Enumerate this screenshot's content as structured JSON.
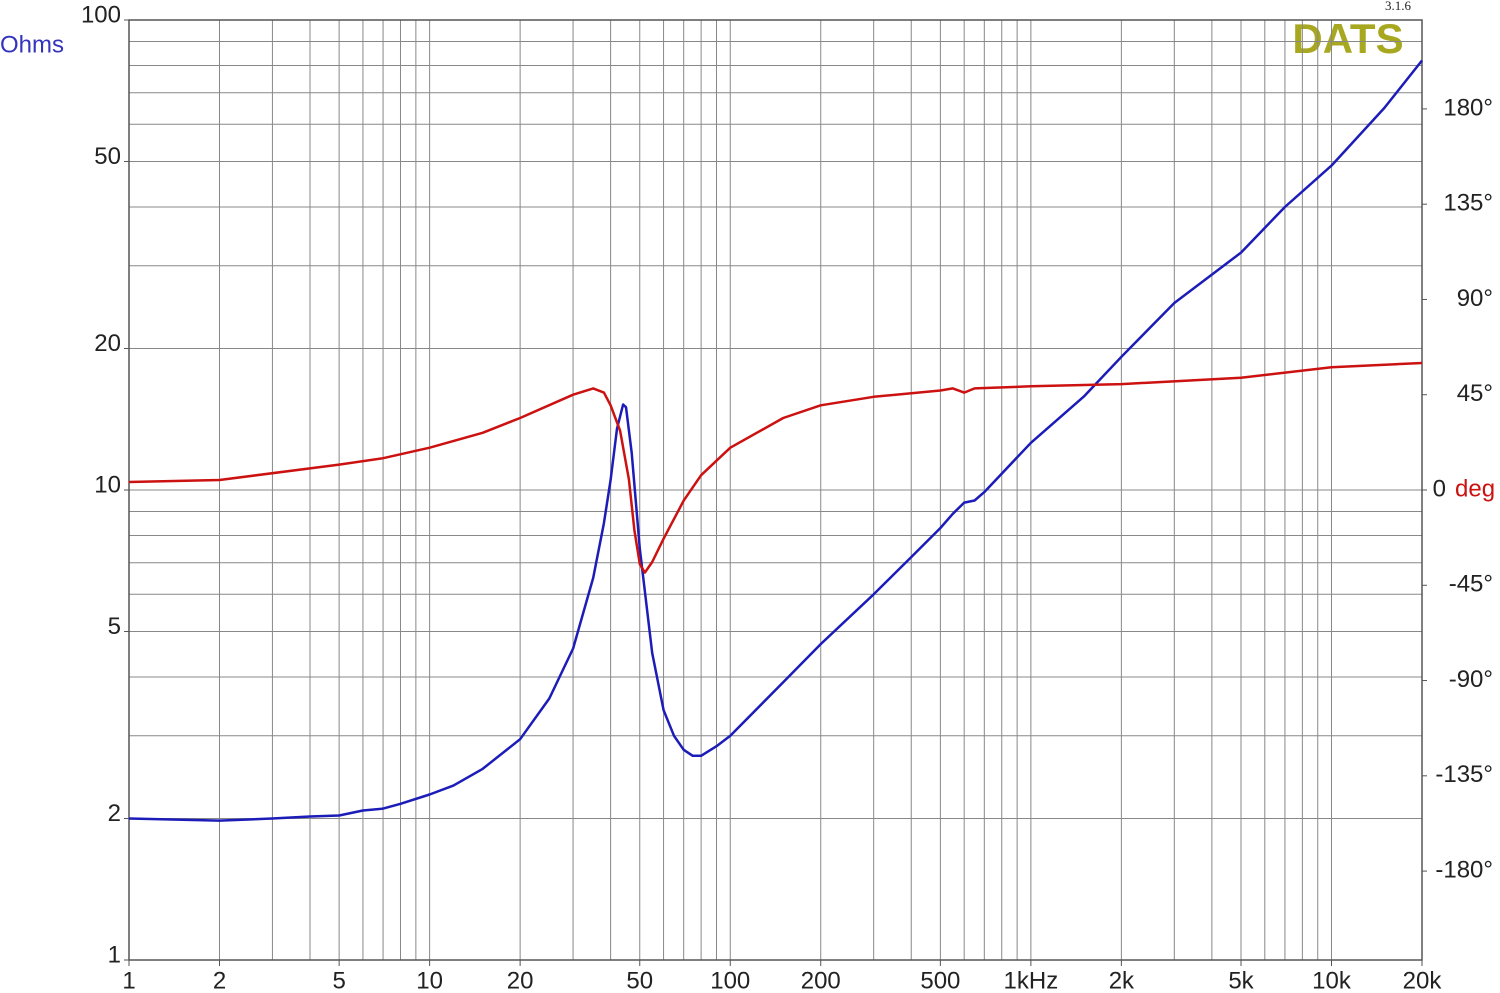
{
  "chart_data": {
    "type": "line",
    "xscale": "log",
    "yscale": "log",
    "brand": "DATS",
    "version": "3.1.6",
    "ylabel": "Ohms",
    "y2label": "deg",
    "xlim": [
      1,
      20000
    ],
    "ylim": [
      1,
      100
    ],
    "y2lim": [
      -222,
      222
    ],
    "xticks": [
      1,
      2,
      5,
      10,
      20,
      50,
      100,
      200,
      500,
      {
        "value": 1000,
        "label": "1kHz"
      },
      {
        "value": 2000,
        "label": "2k"
      },
      {
        "value": 5000,
        "label": "5k"
      },
      {
        "value": 10000,
        "label": "10k"
      },
      {
        "value": 20000,
        "label": "20k"
      }
    ],
    "yticks": [
      1,
      2,
      5,
      10,
      20,
      50,
      100
    ],
    "y2ticks": [
      {
        "value": -180,
        "label": "-180°"
      },
      {
        "value": -135,
        "label": "-135°"
      },
      {
        "value": -90,
        "label": "-90°"
      },
      {
        "value": -45,
        "label": "-45°"
      },
      0,
      {
        "value": 45,
        "label": "45°"
      },
      {
        "value": 90,
        "label": "90°"
      },
      {
        "value": 135,
        "label": "135°"
      },
      {
        "value": 180,
        "label": "180°"
      }
    ],
    "xgrid": [
      1,
      2,
      3,
      4,
      5,
      6,
      7,
      8,
      9,
      10,
      20,
      30,
      40,
      50,
      60,
      70,
      80,
      90,
      100,
      200,
      300,
      400,
      500,
      600,
      700,
      800,
      900,
      1000,
      2000,
      3000,
      4000,
      5000,
      6000,
      7000,
      8000,
      9000,
      10000,
      20000
    ],
    "ygrid": [
      1,
      2,
      3,
      4,
      5,
      6,
      7,
      8,
      9,
      10,
      20,
      30,
      40,
      50,
      60,
      70,
      80,
      90,
      100
    ],
    "grid": true,
    "series": [
      {
        "color": "#1c1cb8",
        "axis": "y",
        "x": [
          1,
          2,
          3,
          4,
          5,
          6,
          7,
          8,
          10,
          12,
          15,
          20,
          25,
          30,
          35,
          38,
          40,
          42,
          44,
          45,
          47,
          50,
          55,
          60,
          65,
          70,
          75,
          80,
          90,
          100,
          150,
          200,
          300,
          400,
          500,
          550,
          600,
          650,
          700,
          1000,
          1500,
          2000,
          3000,
          5000,
          7000,
          10000,
          15000,
          20000
        ],
        "values": [
          2.0,
          1.98,
          2.0,
          2.02,
          2.03,
          2.08,
          2.1,
          2.15,
          2.25,
          2.35,
          2.55,
          2.95,
          3.6,
          4.6,
          6.5,
          8.5,
          10.5,
          13.5,
          15.2,
          15.0,
          12,
          7.5,
          4.5,
          3.4,
          3.0,
          2.8,
          2.72,
          2.72,
          2.85,
          3.0,
          3.9,
          4.7,
          6.0,
          7.2,
          8.3,
          8.9,
          9.4,
          9.5,
          9.9,
          12.6,
          15.8,
          19.2,
          25,
          32,
          40,
          49,
          65,
          82
        ]
      },
      {
        "color": "#cc1111",
        "axis": "y2",
        "x": [
          1,
          2,
          5,
          7,
          10,
          15,
          20,
          30,
          35,
          38,
          40,
          43,
          46,
          48,
          50,
          52,
          55,
          60,
          70,
          80,
          100,
          150,
          200,
          300,
          500,
          550,
          600,
          650,
          1000,
          2000,
          5000,
          10000,
          20000
        ],
        "values": [
          3.8,
          4.7,
          12,
          15,
          20,
          27,
          34,
          45,
          48,
          46,
          40,
          28,
          5,
          -19,
          -35,
          -39,
          -34,
          -23,
          -5,
          7,
          20,
          34,
          40,
          44,
          47,
          48,
          46,
          48,
          49,
          50,
          53,
          58,
          60
        ]
      }
    ]
  }
}
